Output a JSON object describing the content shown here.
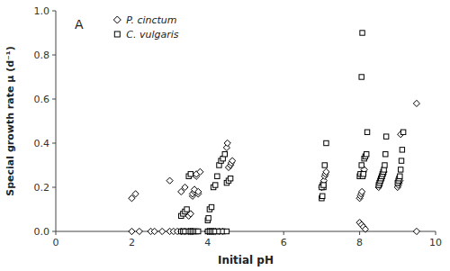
{
  "chart_data": {
    "type": "scatter",
    "xlabel": "Initial pH",
    "ylabel": "Special growth rate μ (d⁻¹)",
    "xlim": [
      0,
      10
    ],
    "ylim": [
      0,
      1.0
    ],
    "xticks": [
      0,
      2,
      4,
      6,
      8,
      10
    ],
    "yticks": [
      {
        "value": 0.0,
        "label": "0.0"
      },
      0.2,
      0.4,
      0.6,
      0.8,
      {
        "value": 1.0,
        "label": "1.0"
      }
    ],
    "annotations": [
      "A"
    ],
    "legend": "upper left",
    "series": [
      {
        "name": "P. cinctum",
        "marker": "diamond",
        "color": "black",
        "x": [
          2.0,
          2.1,
          3.0,
          3.3,
          3.4,
          3.5,
          3.55,
          3.6,
          3.6,
          3.65,
          3.65,
          3.7,
          3.7,
          3.75,
          3.75,
          3.8,
          4.5,
          4.52,
          4.55,
          4.6,
          4.62,
          4.65,
          7.0,
          7.02,
          7.04,
          7.06,
          7.08,
          7.1,
          7.12,
          8.0,
          8.02,
          8.04,
          8.06,
          8.08,
          8.1,
          8.12,
          8.5,
          8.52,
          8.54,
          8.56,
          8.58,
          8.6,
          8.62,
          8.64,
          9.0,
          9.02,
          9.04,
          9.06,
          9.08,
          9.5,
          2.0,
          2.2,
          2.5,
          2.6,
          2.8,
          3.0,
          3.1,
          3.2,
          3.3,
          3.4,
          3.5,
          3.55,
          3.6,
          4.0,
          4.05,
          4.1,
          4.15,
          4.2,
          4.3,
          4.4,
          8.0,
          8.05,
          8.1,
          8.15,
          9.5
        ],
        "values": [
          0.15,
          0.17,
          0.23,
          0.18,
          0.2,
          0.07,
          0.08,
          0.16,
          0.17,
          0.18,
          0.19,
          0.25,
          0.26,
          0.17,
          0.18,
          0.27,
          0.38,
          0.4,
          0.29,
          0.3,
          0.31,
          0.32,
          0.2,
          0.21,
          0.22,
          0.23,
          0.25,
          0.26,
          0.27,
          0.15,
          0.16,
          0.17,
          0.18,
          0.26,
          0.27,
          0.28,
          0.2,
          0.21,
          0.22,
          0.23,
          0.24,
          0.25,
          0.26,
          0.27,
          0.2,
          0.21,
          0.22,
          0.23,
          0.44,
          0.58,
          0.0,
          0.0,
          0.0,
          0.0,
          0.0,
          0.0,
          0.0,
          0.0,
          0.0,
          0.0,
          0.0,
          0.0,
          0.0,
          0.0,
          0.0,
          0.0,
          0.0,
          0.0,
          0.0,
          0.0,
          0.04,
          0.03,
          0.02,
          0.01,
          0.0
        ]
      },
      {
        "name": "C. vulgaris",
        "marker": "square",
        "color": "black",
        "x": [
          3.3,
          3.35,
          3.4,
          3.45,
          3.5,
          3.55,
          4.0,
          4.02,
          4.05,
          4.1,
          4.15,
          4.2,
          4.25,
          4.3,
          4.35,
          4.4,
          4.45,
          4.5,
          4.55,
          4.6,
          7.0,
          7.02,
          7.05,
          7.08,
          7.12,
          8.0,
          8.02,
          8.05,
          8.08,
          8.1,
          8.12,
          8.15,
          8.18,
          8.2,
          8.5,
          8.52,
          8.54,
          8.56,
          8.58,
          8.6,
          8.62,
          8.64,
          8.66,
          8.68,
          8.7,
          9.0,
          9.02,
          9.04,
          9.06,
          9.08,
          9.1,
          9.12,
          9.15,
          8.05,
          8.07,
          3.3,
          3.35,
          3.4,
          3.5,
          3.55,
          3.6,
          3.65,
          3.7,
          3.75,
          4.0,
          4.05,
          4.1,
          4.15,
          4.2,
          4.3,
          4.4,
          4.5,
          7.0,
          7.05
        ],
        "values": [
          0.07,
          0.08,
          0.09,
          0.1,
          0.25,
          0.26,
          0.05,
          0.06,
          0.1,
          0.11,
          0.2,
          0.21,
          0.25,
          0.3,
          0.32,
          0.33,
          0.35,
          0.22,
          0.23,
          0.24,
          0.15,
          0.16,
          0.2,
          0.3,
          0.4,
          0.25,
          0.26,
          0.3,
          0.25,
          0.26,
          0.33,
          0.34,
          0.35,
          0.45,
          0.21,
          0.22,
          0.23,
          0.24,
          0.25,
          0.26,
          0.27,
          0.28,
          0.3,
          0.35,
          0.43,
          0.22,
          0.23,
          0.24,
          0.25,
          0.28,
          0.32,
          0.37,
          0.45,
          0.7,
          0.9,
          0.0,
          0.0,
          0.0,
          0.0,
          0.0,
          0.0,
          0.0,
          0.0,
          0.0,
          0.0,
          0.0,
          0.0,
          0.0,
          0.0,
          0.0,
          0.0,
          0.0,
          0.2,
          0.21
        ]
      }
    ]
  }
}
